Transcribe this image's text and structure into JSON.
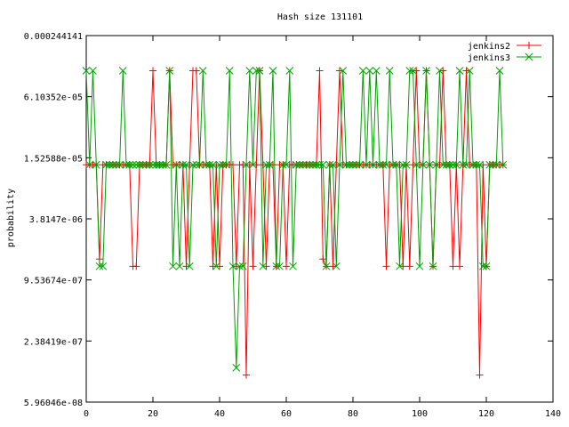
{
  "chart_data": {
    "type": "line",
    "title": "Hash size 131101",
    "xlabel": "",
    "ylabel": "probability",
    "x_scale": "linear",
    "y_scale": "log",
    "xlim": [
      0,
      140
    ],
    "ylim": [
      5.96046e-08,
      0.000244141
    ],
    "x_ticks": [
      "0",
      "20",
      "40",
      "60",
      "80",
      "100",
      "120",
      "140"
    ],
    "y_ticks": [
      "0.000244141",
      "6.10352e-05",
      "1.52588e-05",
      "3.8147e-06",
      "9.53674e-07",
      "2.38419e-07",
      "5.96046e-08"
    ],
    "legend_position": "top-right",
    "grid": false,
    "series": [
      {
        "name": "jenkins2",
        "color": "#ff0000",
        "marker": "plus",
        "x": [
          0,
          1,
          2,
          3,
          4,
          5,
          6,
          7,
          8,
          9,
          10,
          11,
          12,
          13,
          14,
          15,
          16,
          17,
          18,
          19,
          20,
          21,
          22,
          23,
          24,
          25,
          26,
          27,
          28,
          29,
          30,
          31,
          32,
          33,
          34,
          35,
          36,
          37,
          38,
          39,
          40,
          41,
          42,
          43,
          44,
          45,
          46,
          47,
          48,
          49,
          50,
          51,
          52,
          53,
          54,
          55,
          56,
          57,
          58,
          59,
          60,
          61,
          62,
          63,
          64,
          65,
          66,
          67,
          68,
          69,
          70,
          71,
          72,
          73,
          74,
          75,
          76,
          77,
          78,
          79,
          80,
          81,
          82,
          83,
          84,
          85,
          86,
          87,
          88,
          89,
          90,
          91,
          92,
          93,
          94,
          95,
          96,
          97,
          98,
          99,
          100,
          101,
          102,
          103,
          104,
          105,
          106,
          107,
          108,
          109,
          110,
          111,
          112,
          113,
          114,
          115,
          116,
          117,
          118,
          119,
          120,
          121,
          122,
          123,
          124,
          125
        ],
        "y": [
          1.3e-05,
          1.3e-05,
          1.3e-05,
          1.3e-05,
          1.53e-06,
          1.3e-05,
          1.3e-05,
          1.3e-05,
          1.3e-05,
          1.3e-05,
          1.3e-05,
          1.3e-05,
          1.3e-05,
          1.3e-05,
          1.3e-06,
          1.3e-06,
          1.3e-05,
          1.3e-05,
          1.3e-05,
          1.3e-05,
          0.00011,
          1.3e-05,
          1.3e-05,
          1.3e-05,
          1.3e-05,
          0.00011,
          1.3e-05,
          1.3e-05,
          1.3e-05,
          1.3e-05,
          1.3e-06,
          1.3e-05,
          0.00011,
          0.00011,
          1.3e-05,
          1.3e-05,
          1.3e-05,
          1.3e-05,
          1.3e-06,
          1.3e-05,
          1.3e-06,
          1.3e-05,
          1.3e-05,
          1.3e-05,
          1.3e-05,
          1.3e-06,
          1.3e-05,
          1.3e-05,
          1.1e-07,
          1.3e-05,
          1.3e-06,
          1.3e-05,
          0.00011,
          1.3e-05,
          1.3e-06,
          1.3e-05,
          1.3e-05,
          1.3e-06,
          1.3e-05,
          1.3e-05,
          1.3e-06,
          1.3e-05,
          1.3e-05,
          1.3e-05,
          1.3e-05,
          1.3e-05,
          1.3e-05,
          1.3e-05,
          1.3e-05,
          1.3e-05,
          0.00011,
          1.53e-06,
          1.3e-06,
          1.3e-05,
          1.3e-06,
          1.3e-05,
          0.00011,
          1.3e-05,
          1.3e-05,
          1.3e-05,
          1.3e-05,
          1.3e-05,
          1.3e-05,
          1.3e-05,
          1.3e-05,
          1.3e-05,
          1.3e-05,
          1.3e-05,
          1.3e-05,
          1.3e-05,
          1.3e-06,
          1.3e-05,
          1.3e-05,
          1.3e-05,
          1.3e-05,
          1.3e-06,
          1.3e-05,
          1.3e-06,
          1.3e-05,
          0.00011,
          1.3e-05,
          1.3e-05,
          0.00011,
          1.3e-05,
          1.3e-06,
          1.3e-05,
          1.3e-05,
          0.00011,
          1.3e-05,
          1.3e-05,
          1.3e-06,
          1.3e-05,
          1.3e-06,
          1.3e-05,
          0.00011,
          1.3e-05,
          1.3e-05,
          1.3e-05,
          1.1e-07,
          1.3e-05,
          1.3e-06,
          1.3e-05,
          1.3e-05,
          1.3e-05,
          1.3e-05,
          1.3e-05
        ]
      },
      {
        "name": "jenkins3",
        "color": "#00a000",
        "marker": "cross",
        "x": [
          0,
          1,
          2,
          3,
          4,
          5,
          6,
          7,
          8,
          9,
          10,
          11,
          12,
          13,
          14,
          15,
          16,
          17,
          18,
          19,
          20,
          21,
          22,
          23,
          24,
          25,
          26,
          27,
          28,
          29,
          30,
          31,
          32,
          33,
          34,
          35,
          36,
          37,
          38,
          39,
          40,
          41,
          42,
          43,
          44,
          45,
          46,
          47,
          48,
          49,
          50,
          51,
          52,
          53,
          54,
          55,
          56,
          57,
          58,
          59,
          60,
          61,
          62,
          63,
          64,
          65,
          66,
          67,
          68,
          69,
          70,
          71,
          72,
          73,
          74,
          75,
          76,
          77,
          78,
          79,
          80,
          81,
          82,
          83,
          84,
          85,
          86,
          87,
          88,
          89,
          90,
          91,
          92,
          93,
          94,
          95,
          96,
          97,
          98,
          99,
          100,
          101,
          102,
          103,
          104,
          105,
          106,
          107,
          108,
          109,
          110,
          111,
          112,
          113,
          114,
          115,
          116,
          117,
          118,
          119,
          120,
          121,
          122,
          123,
          124,
          125
        ],
        "y": [
          0.00011,
          1.3e-05,
          0.00011,
          1.3e-05,
          1.3e-06,
          1.3e-06,
          1.3e-05,
          1.3e-05,
          1.3e-05,
          1.3e-05,
          1.3e-05,
          0.00011,
          1.3e-05,
          1.3e-05,
          1.3e-05,
          1.3e-05,
          1.3e-05,
          1.3e-05,
          1.3e-05,
          1.3e-05,
          1.3e-05,
          1.3e-05,
          1.3e-05,
          1.3e-05,
          1.3e-05,
          0.00011,
          1.3e-06,
          1.3e-05,
          1.3e-06,
          1.3e-05,
          1.3e-05,
          1.3e-06,
          1.3e-05,
          1.3e-05,
          1.3e-05,
          0.00011,
          1.3e-05,
          1.3e-05,
          1.3e-05,
          1.3e-06,
          1.3e-05,
          1.3e-05,
          1.3e-05,
          0.00011,
          1.3e-06,
          1.3e-07,
          1.3e-06,
          1.3e-06,
          1.3e-05,
          0.00011,
          1.3e-05,
          0.00011,
          0.00011,
          1.3e-06,
          1.3e-05,
          1.3e-05,
          0.00011,
          1.3e-06,
          1.3e-06,
          1.3e-05,
          1.3e-05,
          0.00011,
          1.3e-06,
          1.3e-05,
          1.3e-05,
          1.3e-05,
          1.3e-05,
          1.3e-05,
          1.3e-05,
          1.3e-05,
          1.3e-05,
          1.3e-05,
          1.3e-06,
          1.3e-05,
          1.3e-05,
          1.3e-06,
          1.3e-05,
          0.00011,
          1.3e-05,
          1.3e-05,
          1.3e-05,
          1.3e-05,
          1.3e-05,
          0.00011,
          1.3e-05,
          0.00011,
          1.3e-05,
          0.00011,
          1.3e-05,
          1.3e-05,
          1.3e-05,
          0.00011,
          1.3e-05,
          1.3e-05,
          1.3e-06,
          1.3e-05,
          1.3e-05,
          0.00011,
          0.00011,
          1.3e-05,
          1.3e-06,
          1.3e-05,
          0.00011,
          1.3e-05,
          1.3e-06,
          1.3e-05,
          0.00011,
          1.3e-05,
          1.3e-05,
          1.3e-05,
          1.3e-05,
          1.3e-05,
          0.00011,
          1.3e-05,
          1.3e-05,
          0.00011,
          1.3e-05,
          1.3e-05,
          1.3e-05,
          1.3e-06,
          1.3e-06,
          1.3e-05,
          1.3e-05,
          1.3e-05,
          0.00011,
          1.3e-05
        ]
      }
    ]
  }
}
